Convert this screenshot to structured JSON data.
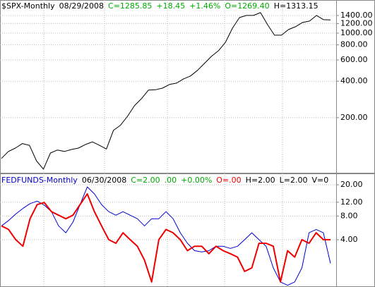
{
  "chart_data": [
    {
      "type": "line",
      "log_scale": true,
      "grid": true,
      "header": [
        {
          "text": "$SPX-Monthly",
          "color": "#000000"
        },
        {
          "text": "08/29/2008",
          "color": "#000000"
        },
        {
          "text": "C=1285.85",
          "color": "#00aa00"
        },
        {
          "text": "+18.45",
          "color": "#00aa00"
        },
        {
          "text": "+1.46%",
          "color": "#00aa00"
        },
        {
          "text": "O=1269.40",
          "color": "#00aa00"
        },
        {
          "text": "H=1313.15",
          "color": "#000000"
        }
      ],
      "ylim": [
        70,
        1880
      ],
      "yticks": [
        {
          "value": 1400,
          "label": "1400.00"
        },
        {
          "value": 1200,
          "label": "1200.00"
        },
        {
          "value": 1000,
          "label": "1000.00"
        },
        {
          "value": 800,
          "label": "800.00"
        },
        {
          "value": 600,
          "label": "600.00"
        },
        {
          "value": 400,
          "label": "400.00"
        },
        {
          "value": 200,
          "label": "200.00"
        }
      ],
      "series": [
        {
          "color": "#000000",
          "values": [
            92,
            105,
            112,
            122,
            118,
            88,
            75,
            102,
            108,
            105,
            109,
            112,
            120,
            126,
            118,
            110,
            157,
            173,
            205,
            251,
            287,
            338,
            340,
            351,
            376,
            386,
            418,
            442,
            492,
            562,
            643,
            716,
            841,
            1100,
            1345,
            1400,
            1400,
            1478,
            1176,
            962,
            962,
            1071,
            1130,
            1225,
            1258,
            1400,
            1292,
            1286
          ]
        }
      ]
    },
    {
      "type": "line",
      "log_scale": true,
      "grid": true,
      "header": [
        {
          "text": "FEDFUNDS-Monthly",
          "color": "#0000cc"
        },
        {
          "text": "06/30/2008",
          "color": "#000000"
        },
        {
          "text": "C=2.00",
          "color": "#00aa00"
        },
        {
          "text": ".00",
          "color": "#00aa00"
        },
        {
          "text": "+0.00%",
          "color": "#00aa00"
        },
        {
          "text": "O=.00",
          "color": "#ee0000"
        },
        {
          "text": "H=2.00",
          "color": "#000000"
        },
        {
          "text": "L=2.00",
          "color": "#000000"
        },
        {
          "text": "V=0",
          "color": "#000000"
        }
      ],
      "ylim": [
        1.0,
        27.3
      ],
      "yticks": [
        {
          "value": 20,
          "label": "20.00"
        },
        {
          "value": 12,
          "label": "12.00"
        },
        {
          "value": 8,
          "label": "8.00"
        },
        {
          "value": 4,
          "label": "4.00"
        }
      ],
      "series": [
        {
          "color": "#0000cc",
          "width": 1,
          "values": [
            6.0,
            7.0,
            8.5,
            10.0,
            11.5,
            12.4,
            11.0,
            9.1,
            6.0,
            4.9,
            6.7,
            11.2,
            18.8,
            15.3,
            11.2,
            9.1,
            8.2,
            9.1,
            8.2,
            7.4,
            6.0,
            7.4,
            7.4,
            9.1,
            7.4,
            4.9,
            3.6,
            2.9,
            2.8,
            2.9,
            3.3,
            3.3,
            3.1,
            3.3,
            4.0,
            4.9,
            4.0,
            3.3,
            1.75,
            1.16,
            1.05,
            1.16,
            1.75,
            4.9,
            5.4,
            4.9,
            2.0
          ]
        },
        {
          "color": "#ee0000",
          "width": 2,
          "values": [
            6.0,
            5.4,
            4.0,
            3.3,
            7.4,
            11.2,
            11.9,
            9.1,
            8.2,
            7.4,
            8.2,
            11.2,
            15.3,
            9.1,
            6.0,
            4.0,
            3.6,
            4.9,
            4.0,
            3.3,
            2.2,
            1.16,
            4.0,
            5.4,
            4.9,
            4.0,
            2.9,
            3.3,
            3.3,
            2.65,
            3.3,
            2.9,
            2.65,
            2.4,
            1.58,
            1.75,
            3.6,
            3.6,
            3.3,
            1.16,
            2.9,
            2.4,
            4.0,
            3.6,
            4.9,
            4.0,
            4.0
          ]
        }
      ]
    }
  ]
}
